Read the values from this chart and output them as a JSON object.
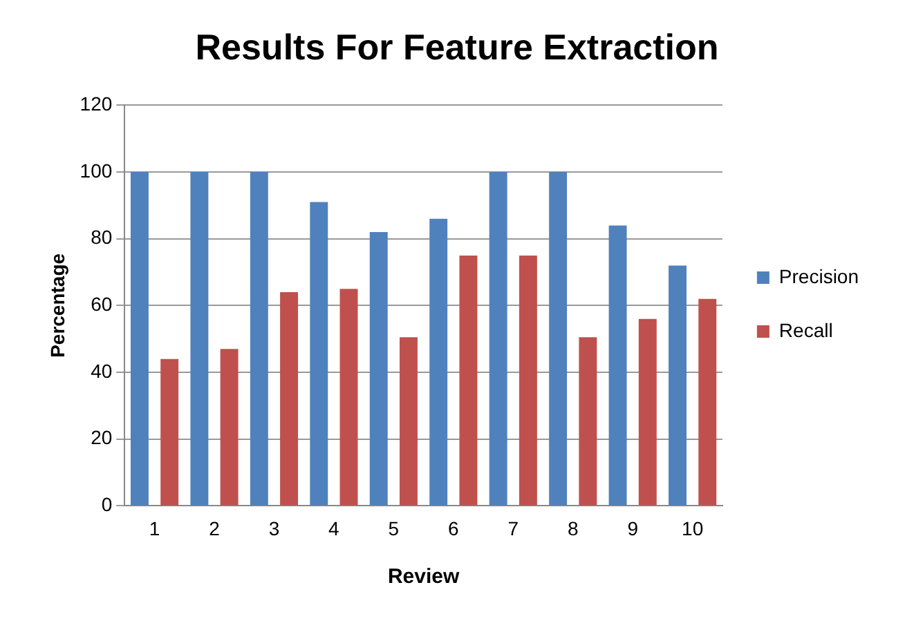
{
  "chart_data": {
    "type": "bar",
    "title": "Results For Feature Extraction",
    "xlabel": "Review",
    "ylabel": "Percentage",
    "categories": [
      "1",
      "2",
      "3",
      "4",
      "5",
      "6",
      "7",
      "8",
      "9",
      "10"
    ],
    "series": [
      {
        "name": "Precision",
        "color": "#4f81bd",
        "values": [
          100,
          100,
          100,
          91,
          82,
          86,
          100,
          100,
          84,
          72
        ]
      },
      {
        "name": "Recall",
        "color": "#c0504d",
        "values": [
          44,
          47,
          64,
          65,
          50.5,
          75,
          75,
          50.5,
          56,
          62
        ]
      }
    ],
    "ylim": [
      0,
      120
    ],
    "yticks": [
      0,
      20,
      40,
      60,
      80,
      100,
      120
    ],
    "grid": "y",
    "legend": "right"
  }
}
